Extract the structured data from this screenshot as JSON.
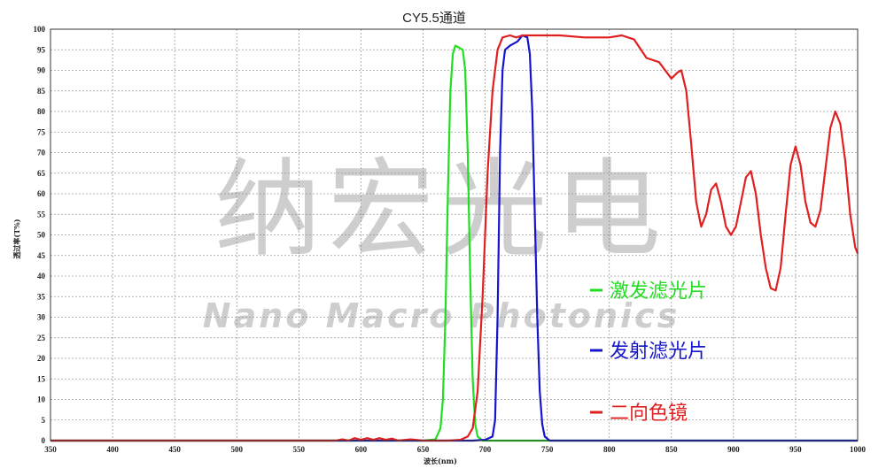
{
  "chart_data": {
    "type": "line",
    "title": "CY5.5通道",
    "xlabel": "波长(nm)",
    "ylabel": "透过率(T%)",
    "xlim": [
      350,
      1000
    ],
    "ylim": [
      0,
      100
    ],
    "xticks": [
      350,
      400,
      450,
      500,
      550,
      600,
      650,
      700,
      750,
      800,
      850,
      900,
      950,
      1000
    ],
    "yticks": [
      0,
      5,
      10,
      15,
      20,
      25,
      30,
      35,
      40,
      45,
      50,
      55,
      60,
      65,
      70,
      75,
      80,
      85,
      90,
      95,
      100
    ],
    "grid": true,
    "legend_position": "right",
    "series": [
      {
        "name": "激发滤光片",
        "color": "#22dd22",
        "points": [
          [
            350,
            0
          ],
          [
            650,
            0
          ],
          [
            660,
            0.3
          ],
          [
            664,
            3
          ],
          [
            666,
            10
          ],
          [
            668,
            30
          ],
          [
            670,
            60
          ],
          [
            672,
            85
          ],
          [
            674,
            94
          ],
          [
            676,
            96
          ],
          [
            679,
            95.5
          ],
          [
            682,
            95
          ],
          [
            684,
            90
          ],
          [
            686,
            70
          ],
          [
            688,
            40
          ],
          [
            690,
            15
          ],
          [
            692,
            4
          ],
          [
            694,
            1
          ],
          [
            698,
            0
          ],
          [
            1000,
            0
          ]
        ]
      },
      {
        "name": "发射滤光片",
        "color": "#1515cc",
        "points": [
          [
            350,
            0
          ],
          [
            690,
            0
          ],
          [
            700,
            0.2
          ],
          [
            706,
            1
          ],
          [
            708,
            5
          ],
          [
            710,
            30
          ],
          [
            712,
            70
          ],
          [
            714,
            90
          ],
          [
            716,
            95
          ],
          [
            720,
            96
          ],
          [
            726,
            97
          ],
          [
            730,
            98.5
          ],
          [
            734,
            98
          ],
          [
            736,
            94
          ],
          [
            738,
            80
          ],
          [
            740,
            55
          ],
          [
            742,
            30
          ],
          [
            744,
            12
          ],
          [
            746,
            4
          ],
          [
            748,
            1
          ],
          [
            752,
            0
          ],
          [
            1000,
            0
          ]
        ]
      },
      {
        "name": "二向色镜",
        "color": "#e02020",
        "points": [
          [
            350,
            0
          ],
          [
            580,
            0
          ],
          [
            585,
            0.3
          ],
          [
            590,
            0
          ],
          [
            595,
            0.6
          ],
          [
            600,
            0.2
          ],
          [
            605,
            0.6
          ],
          [
            610,
            0.2
          ],
          [
            615,
            0.6
          ],
          [
            620,
            0.2
          ],
          [
            625,
            0.5
          ],
          [
            630,
            0
          ],
          [
            640,
            0.3
          ],
          [
            650,
            0
          ],
          [
            670,
            0
          ],
          [
            680,
            0.2
          ],
          [
            686,
            1
          ],
          [
            690,
            3
          ],
          [
            694,
            12
          ],
          [
            698,
            35
          ],
          [
            702,
            65
          ],
          [
            706,
            85
          ],
          [
            710,
            95
          ],
          [
            714,
            98
          ],
          [
            720,
            98.5
          ],
          [
            725,
            98
          ],
          [
            730,
            98.5
          ],
          [
            740,
            98.5
          ],
          [
            760,
            98.5
          ],
          [
            780,
            98
          ],
          [
            800,
            98
          ],
          [
            810,
            98.5
          ],
          [
            820,
            97.5
          ],
          [
            830,
            93
          ],
          [
            840,
            92
          ],
          [
            850,
            88
          ],
          [
            855,
            89.5
          ],
          [
            858,
            90
          ],
          [
            862,
            85
          ],
          [
            866,
            72
          ],
          [
            870,
            58
          ],
          [
            874,
            52
          ],
          [
            878,
            55
          ],
          [
            882,
            61
          ],
          [
            886,
            62.5
          ],
          [
            890,
            58
          ],
          [
            894,
            52
          ],
          [
            898,
            50
          ],
          [
            902,
            52
          ],
          [
            906,
            58
          ],
          [
            910,
            64
          ],
          [
            914,
            65.5
          ],
          [
            918,
            60
          ],
          [
            922,
            50
          ],
          [
            926,
            42
          ],
          [
            930,
            37
          ],
          [
            934,
            36.5
          ],
          [
            938,
            42
          ],
          [
            942,
            55
          ],
          [
            946,
            67
          ],
          [
            950,
            71.5
          ],
          [
            954,
            67
          ],
          [
            958,
            58
          ],
          [
            962,
            53
          ],
          [
            966,
            52
          ],
          [
            970,
            56
          ],
          [
            974,
            66
          ],
          [
            978,
            76
          ],
          [
            982,
            80
          ],
          [
            986,
            77
          ],
          [
            990,
            68
          ],
          [
            994,
            55
          ],
          [
            998,
            47
          ],
          [
            1000,
            45.5
          ]
        ]
      }
    ]
  },
  "watermark": {
    "cn": "纳宏光电",
    "en": "Nano Macro Photonics"
  }
}
